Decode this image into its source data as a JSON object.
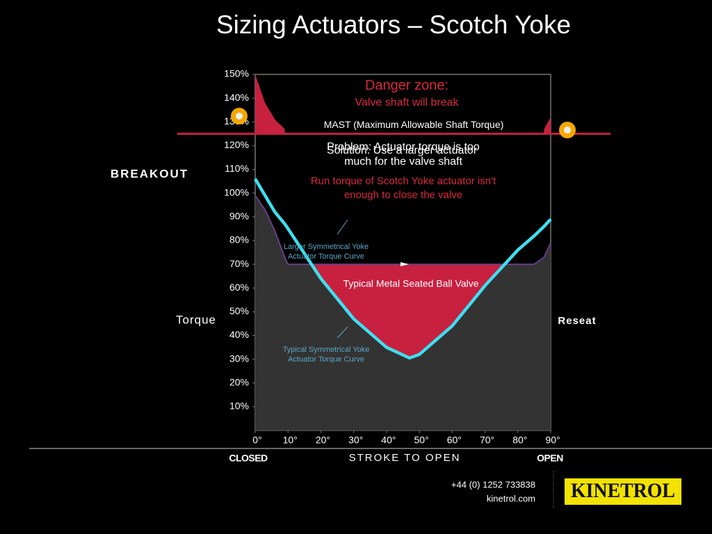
{
  "chart_data": {
    "type": "line",
    "title": "Sizing Actuators – Scotch Yoke",
    "y_axis_label": "Torque",
    "y_top_label": "BREAKOUT",
    "y_right_label": "Reseat",
    "x_axis_label": "STROKE TO OPEN",
    "x_start_label": "CLOSED",
    "x_end_label": "OPEN",
    "xlim": [
      0,
      90
    ],
    "xticks": [
      {
        "value": 0,
        "label": "0°"
      },
      {
        "value": 10,
        "label": "10°"
      },
      {
        "value": 20,
        "label": "20°"
      },
      {
        "value": 30,
        "label": "30°"
      },
      {
        "value": 40,
        "label": "40°"
      },
      {
        "value": 50,
        "label": "50°"
      },
      {
        "value": 60,
        "label": "60°"
      },
      {
        "value": 70,
        "label": "70°"
      },
      {
        "value": 80,
        "label": "80°"
      },
      {
        "value": 90,
        "label": "90°"
      }
    ],
    "ylim": [
      0,
      150
    ],
    "yticks": [
      {
        "value": 10,
        "label": "10%"
      },
      {
        "value": 20,
        "label": "20%"
      },
      {
        "value": 30,
        "label": "30%"
      },
      {
        "value": 40,
        "label": "40%"
      },
      {
        "value": 50,
        "label": "50%"
      },
      {
        "value": 60,
        "label": "60%"
      },
      {
        "value": 70,
        "label": "70%"
      },
      {
        "value": 80,
        "label": "80%"
      },
      {
        "value": 90,
        "label": "90%"
      },
      {
        "value": 100,
        "label": "100%"
      },
      {
        "value": 110,
        "label": "110%"
      },
      {
        "value": 120,
        "label": "120%"
      },
      {
        "value": 130,
        "label": "130%"
      },
      {
        "value": 140,
        "label": "140%"
      },
      {
        "value": 150,
        "label": "150%"
      }
    ],
    "x": [
      0,
      3,
      6,
      9,
      10,
      20,
      30,
      40,
      47,
      50,
      60,
      70,
      80,
      85,
      88,
      90
    ],
    "series": [
      {
        "name": "Typical Metal Seated Ball Valve",
        "color": "#c8203f",
        "values": [
          150,
          138,
          131,
          127,
          70,
          70,
          70,
          70,
          70,
          70,
          70,
          70,
          70,
          70,
          127,
          132
        ]
      },
      {
        "name": "Larger Symmetrical Yoke Actuator Torque Curve",
        "color": "#6a3d8a",
        "values": [
          99,
          93,
          84,
          73,
          70,
          70,
          70,
          70,
          70,
          70,
          70,
          70,
          70,
          70,
          73,
          79
        ]
      },
      {
        "name": "Typical Symmetrical Yoke Actuator Torque Curve",
        "color": "#3de0f0",
        "values": [
          106,
          99,
          92,
          87,
          85,
          64,
          47,
          35,
          30.5,
          32,
          44,
          61,
          76,
          82,
          86,
          89
        ]
      }
    ],
    "mast": {
      "label": "MAST (Maximum Allowable Shaft Torque)",
      "value": 125,
      "color": "#c8203f"
    },
    "annotations": {
      "danger_title": "Danger zone:",
      "danger_text": "Valve shaft will break",
      "problem": "Problem: Actuator torque is too much for the valve shaft",
      "solution": "Solution: Use a larger actuator",
      "run_torque": "Run torque of Scotch Yoke actuator isn't enough to close the valve"
    }
  },
  "footer": {
    "phone": "+44 (0) 1252 733838",
    "website": "kinetrol.com",
    "logo": "KINETROL"
  }
}
